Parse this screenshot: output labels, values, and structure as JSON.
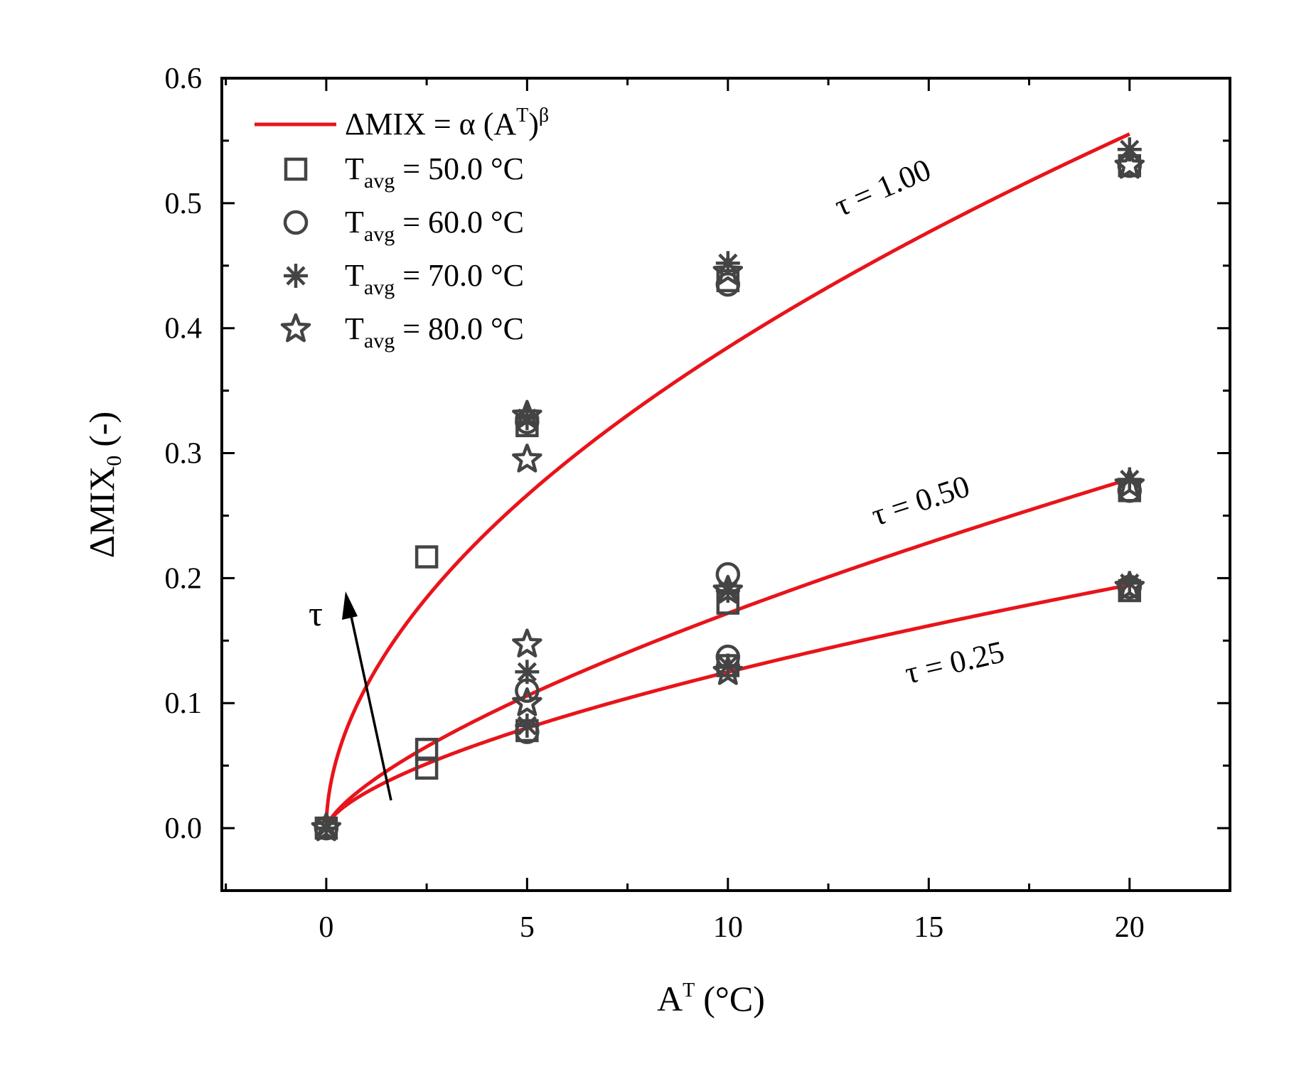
{
  "chart_data": {
    "type": "scatter",
    "xlabel": "A",
    "xlabel_sup": "T",
    "xlabel_unit": "(°C)",
    "ylabel": "ΔMIX",
    "ylabel_sub": "0",
    "ylabel_unit": "(-)",
    "xlim": [
      -2.6,
      22.5
    ],
    "ylim": [
      -0.05,
      0.6
    ],
    "x_ticks": [
      0,
      5,
      10,
      15,
      20
    ],
    "x_tick_labels": [
      "0",
      "5",
      "10",
      "15",
      "20"
    ],
    "y_ticks": [
      0.0,
      0.1,
      0.2,
      0.3,
      0.4,
      0.5,
      0.6
    ],
    "y_tick_labels": [
      "0.0",
      "0.1",
      "0.2",
      "0.3",
      "0.4",
      "0.5",
      "0.6"
    ],
    "legend": {
      "fit_label": "ΔMIX = α (A",
      "fit_label_sup": "T",
      "fit_label_end": ")",
      "fit_label_sup2": "β",
      "series_prefix": "T",
      "series_sub": "avg",
      "placement": "top-left"
    },
    "fit_curves": [
      {
        "tau_label": "τ = 1.00",
        "alpha": 0.1135,
        "beta": 0.53,
        "color": "#e8141b"
      },
      {
        "tau_label": "τ = 0.50",
        "alpha": 0.0343,
        "beta": 0.7,
        "color": "#e8141b"
      },
      {
        "tau_label": "τ = 0.25",
        "alpha": 0.0286,
        "beta": 0.64,
        "color": "#e8141b"
      }
    ],
    "arrow_label": "τ",
    "series": [
      {
        "name": " = 50.0 °C",
        "marker": "square",
        "points": [
          [
            0,
            0
          ],
          [
            2.5,
            0.217
          ],
          [
            2.5,
            0.063
          ],
          [
            2.5,
            0.048
          ],
          [
            5,
            0.322
          ],
          [
            5,
            0.078
          ],
          [
            10,
            0.438
          ],
          [
            10,
            0.18
          ],
          [
            10,
            0.13
          ],
          [
            20,
            0.53
          ],
          [
            20,
            0.27
          ],
          [
            20,
            0.19
          ]
        ]
      },
      {
        "name": " = 60.0 °C",
        "marker": "circle",
        "points": [
          [
            0,
            0
          ],
          [
            5,
            0.325
          ],
          [
            5,
            0.11
          ],
          [
            5,
            0.077
          ],
          [
            10,
            0.435
          ],
          [
            10,
            0.203
          ],
          [
            10,
            0.137
          ],
          [
            20,
            0.53
          ],
          [
            20,
            0.27
          ],
          [
            20,
            0.193
          ]
        ]
      },
      {
        "name": " = 70.0 °C",
        "marker": "asterisk",
        "points": [
          [
            0,
            0
          ],
          [
            5,
            0.328
          ],
          [
            5,
            0.125
          ],
          [
            5,
            0.082
          ],
          [
            10,
            0.452
          ],
          [
            10,
            0.19
          ],
          [
            10,
            0.13
          ],
          [
            20,
            0.543
          ],
          [
            20,
            0.279
          ],
          [
            20,
            0.196
          ]
        ]
      },
      {
        "name": " = 80.0 °C",
        "marker": "star",
        "points": [
          [
            0,
            0
          ],
          [
            5,
            0.33
          ],
          [
            5,
            0.295
          ],
          [
            5,
            0.147
          ],
          [
            5,
            0.1
          ],
          [
            10,
            0.445
          ],
          [
            10,
            0.19
          ],
          [
            10,
            0.125
          ],
          [
            20,
            0.53
          ],
          [
            20,
            0.275
          ],
          [
            20,
            0.193
          ]
        ]
      }
    ]
  }
}
